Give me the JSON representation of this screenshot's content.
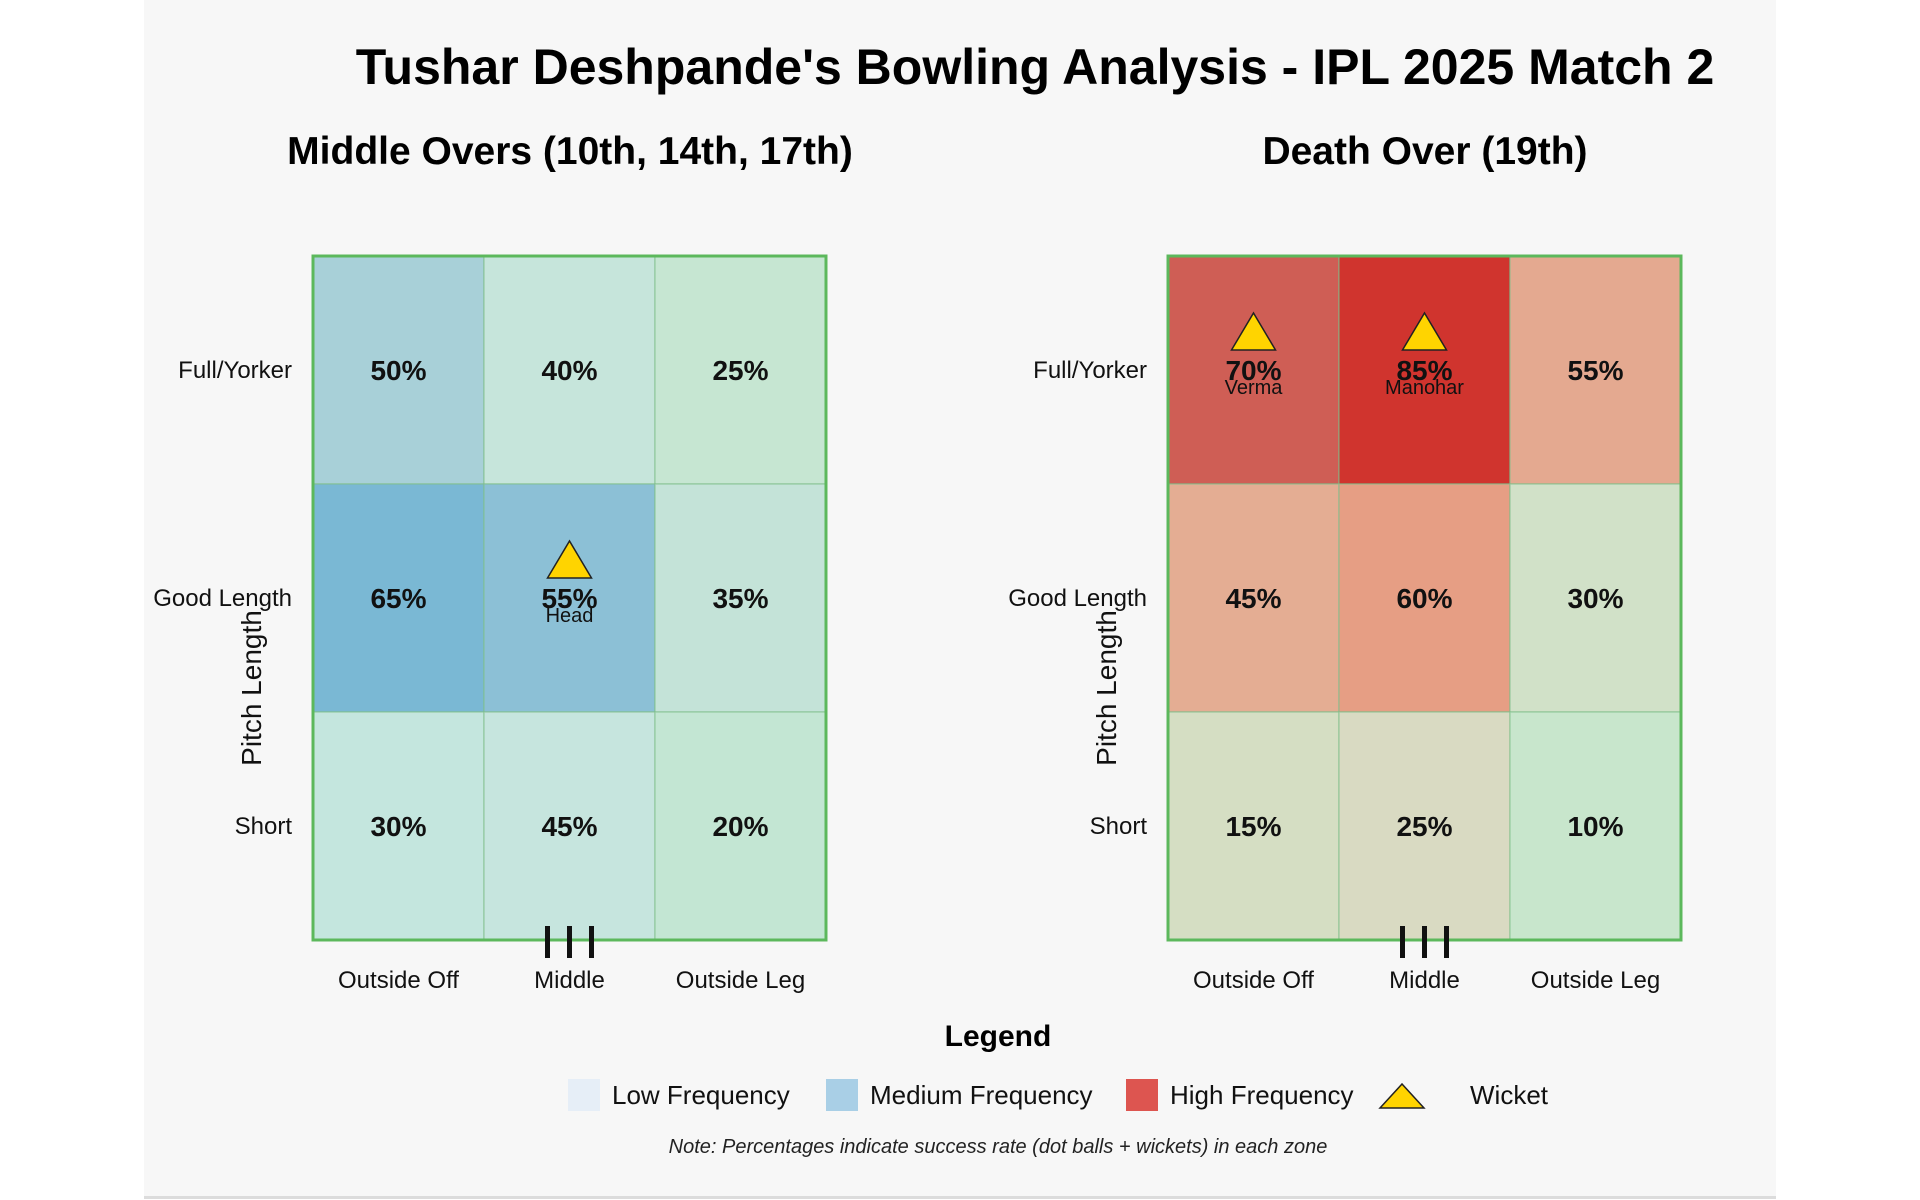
{
  "title": "Tushar Deshpande's Bowling Analysis - IPL 2025 Match 2",
  "chart_data": [
    {
      "type": "heatmap",
      "title": "Middle Overs (10th, 14th, 17th)",
      "ylabel": "Pitch Length",
      "rows": [
        "Full/Yorker",
        "Good Length",
        "Short"
      ],
      "columns": [
        "Outside Off",
        "Middle",
        "Outside Leg"
      ],
      "values": [
        [
          50,
          40,
          25
        ],
        [
          65,
          55,
          35
        ],
        [
          30,
          45,
          20
        ]
      ],
      "value_suffix": "%",
      "cell_colors": [
        [
          "#a8d0d8",
          "#c6e5db",
          "#c6e6d2"
        ],
        [
          "#7ab8d4",
          "#8cc0d6",
          "#c4e3d8"
        ],
        [
          "#c4e6de",
          "#c6e5de",
          "#c3e6d3"
        ]
      ],
      "wickets": [
        {
          "row": 1,
          "col": 1,
          "batter": "Head"
        }
      ]
    },
    {
      "type": "heatmap",
      "title": "Death Over (19th)",
      "ylabel": "Pitch Length",
      "rows": [
        "Full/Yorker",
        "Good Length",
        "Short"
      ],
      "columns": [
        "Outside Off",
        "Middle",
        "Outside Leg"
      ],
      "values": [
        [
          70,
          85,
          55
        ],
        [
          45,
          60,
          30
        ],
        [
          15,
          25,
          10
        ]
      ],
      "value_suffix": "%",
      "cell_colors": [
        [
          "#cf5e55",
          "#d0342e",
          "#e4a990"
        ],
        [
          "#e4ad93",
          "#e69e84",
          "#d1e1c8"
        ],
        [
          "#d5dec3",
          "#d9dac2",
          "#c8e6cc"
        ]
      ],
      "wickets": [
        {
          "row": 0,
          "col": 0,
          "batter": "Verma"
        },
        {
          "row": 0,
          "col": 1,
          "batter": "Manohar"
        }
      ]
    }
  ],
  "legend": {
    "title": "Legend",
    "items": [
      {
        "label": "Low Frequency",
        "color": "#e6eef7"
      },
      {
        "label": "Medium Frequency",
        "color": "#a9cfe6"
      },
      {
        "label": "High Frequency",
        "color": "#dd5550"
      },
      {
        "label": "Wicket",
        "color": "#ffd400"
      }
    ]
  },
  "note": "Note: Percentages indicate success rate (dot balls + wickets) in each zone",
  "colors": {
    "grid_border": "#5cb85c",
    "wicket_fill": "#ffd400",
    "stumps": "#111111"
  }
}
